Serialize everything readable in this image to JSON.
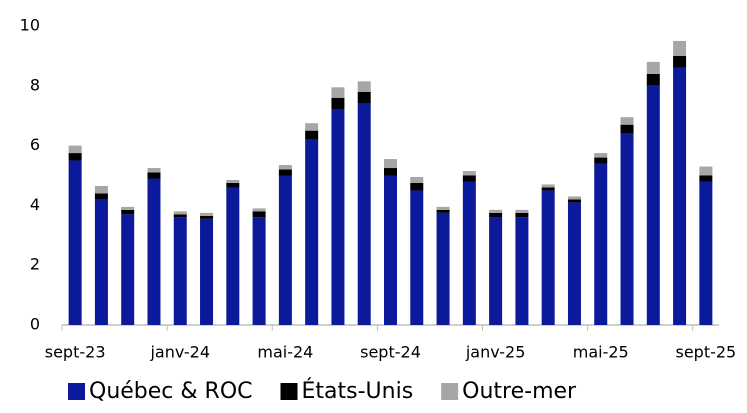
{
  "chart_data": {
    "type": "stacked_bar",
    "categories": [
      "sept-23",
      null,
      null,
      null,
      "janv-24",
      null,
      null,
      null,
      "mai-24",
      null,
      null,
      null,
      "sept-24",
      null,
      null,
      null,
      "janv-25",
      null,
      null,
      null,
      "mai-25",
      null,
      null,
      null,
      "sept-25"
    ],
    "series": [
      {
        "name": "Québec & ROC",
        "color": "#0a1a9a",
        "values": [
          5.5,
          4.2,
          3.7,
          4.9,
          3.6,
          3.55,
          4.6,
          3.6,
          5.0,
          6.2,
          7.2,
          7.4,
          5.0,
          4.5,
          3.75,
          4.8,
          3.6,
          3.6,
          4.5,
          4.1,
          5.4,
          6.4,
          8.0,
          8.6,
          4.8
        ]
      },
      {
        "name": "États-Unis",
        "color": "#000000",
        "values": [
          0.25,
          0.2,
          0.15,
          0.2,
          0.1,
          0.1,
          0.15,
          0.2,
          0.2,
          0.3,
          0.4,
          0.4,
          0.25,
          0.25,
          0.1,
          0.2,
          0.15,
          0.15,
          0.1,
          0.1,
          0.2,
          0.3,
          0.4,
          0.4,
          0.2
        ]
      },
      {
        "name": "Outre-mer",
        "color": "#a6a6a6",
        "values": [
          0.25,
          0.25,
          0.1,
          0.15,
          0.1,
          0.1,
          0.1,
          0.1,
          0.15,
          0.25,
          0.35,
          0.35,
          0.3,
          0.2,
          0.1,
          0.15,
          0.1,
          0.1,
          0.1,
          0.1,
          0.15,
          0.25,
          0.4,
          0.5,
          0.3
        ]
      }
    ],
    "ylim": [
      0,
      10
    ],
    "yticks": [
      0,
      2,
      4,
      6,
      8,
      10
    ],
    "grid": false,
    "legend": "bottom"
  }
}
